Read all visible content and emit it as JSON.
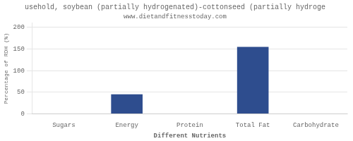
{
  "chart_data": {
    "type": "bar",
    "title": "usehold, soybean (partially hydrogenated)-cottonseed (partially hydroge",
    "subtitle": "www.dietandfitnesstoday.com",
    "categories": [
      "Sugars",
      "Energy",
      "Protein",
      "Total Fat",
      "Carbohydrate"
    ],
    "values": [
      0,
      45,
      0,
      155,
      0
    ],
    "color": "#2e4d8e",
    "xlabel": "Different Nutrients",
    "ylabel": "Percentage of RDH (%)",
    "ylim": [
      0,
      210
    ],
    "yticks": [
      0,
      50,
      100,
      150,
      200
    ],
    "grid": true
  }
}
